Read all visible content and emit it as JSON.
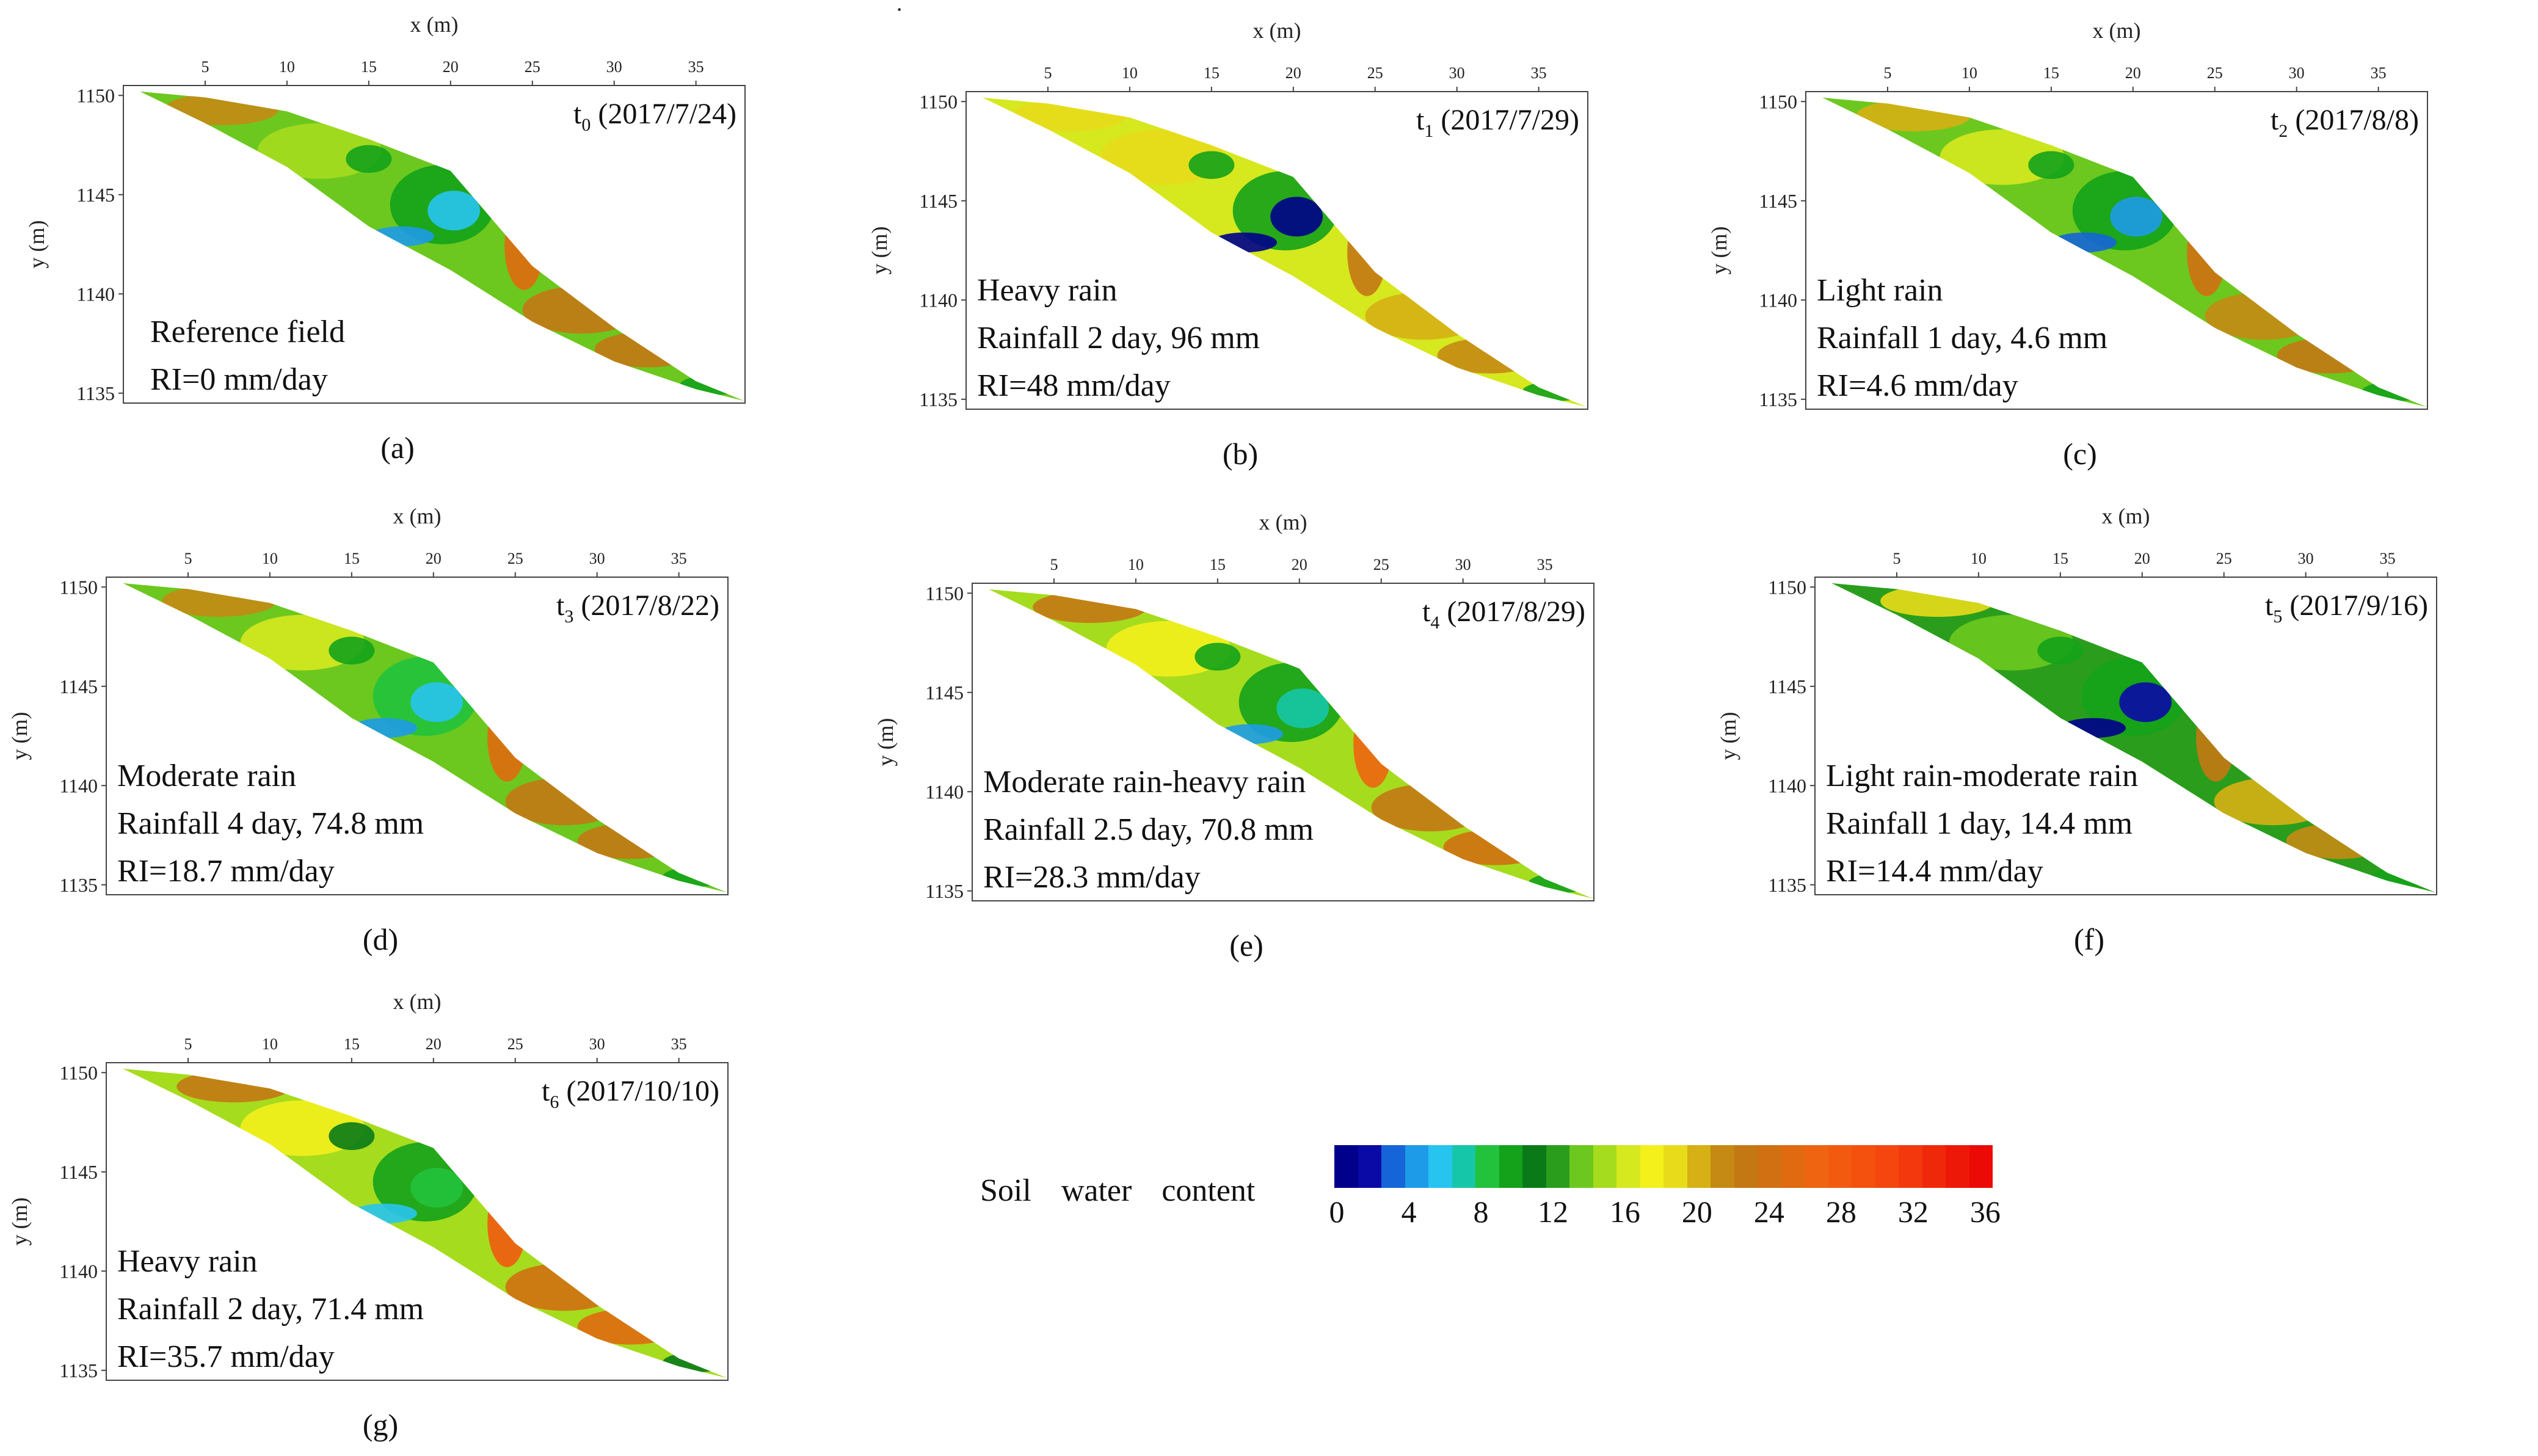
{
  "stray_mark": "·",
  "axes_common": {
    "xlabel": "x (m)",
    "ylabel": "y (m)",
    "xticks": [
      "5",
      "10",
      "15",
      "20",
      "25",
      "30",
      "35"
    ],
    "yticks": [
      "1150",
      "1145",
      "1140",
      "1135"
    ]
  },
  "panels": [
    {
      "id": "a",
      "caption": "(a)",
      "title_main": "t",
      "title_sub": "0",
      "title_date": " (2017/7/24)",
      "notes": [
        "Reference field",
        "RI=0 mm/day"
      ]
    },
    {
      "id": "b",
      "caption": "(b)",
      "title_main": "t",
      "title_sub": "1",
      "title_date": " (2017/7/29)",
      "notes": [
        "Heavy rain",
        "Rainfall 2 day, 96 mm",
        "RI=48 mm/day"
      ]
    },
    {
      "id": "c",
      "caption": "(c)",
      "title_main": "t",
      "title_sub": "2",
      "title_date": " (2017/8/8)",
      "notes": [
        "Light rain",
        "Rainfall 1 day, 4.6 mm",
        "RI=4.6 mm/day"
      ]
    },
    {
      "id": "d",
      "caption": "(d)",
      "title_main": "t",
      "title_sub": "3",
      "title_date": " (2017/8/22)",
      "notes": [
        "Moderate rain",
        "Rainfall 4 day, 74.8 mm",
        "RI=18.7 mm/day"
      ]
    },
    {
      "id": "e",
      "caption": "(e)",
      "title_main": "t",
      "title_sub": "4",
      "title_date": " (2017/8/29)",
      "notes": [
        "Moderate rain-heavy rain",
        "Rainfall 2.5 day, 70.8 mm",
        "RI=28.3 mm/day"
      ]
    },
    {
      "id": "f",
      "caption": "(f)",
      "title_main": "t",
      "title_sub": "5",
      "title_date": " (2017/9/16)",
      "notes": [
        "Light rain-moderate rain",
        "Rainfall 1 day, 14.4 mm",
        "RI=14.4 mm/day"
      ]
    },
    {
      "id": "g",
      "caption": "(g)",
      "title_main": "t",
      "title_sub": "6",
      "title_date": " (2017/10/10)",
      "notes": [
        "Heavy rain",
        "Rainfall 2 day, 71.4 mm",
        "RI=35.7 mm/day"
      ]
    }
  ],
  "legend": {
    "label": "Soil water content",
    "ticks": [
      "0",
      "4",
      "8",
      "12",
      "16",
      "20",
      "24",
      "28",
      "32",
      "36"
    ],
    "colors": [
      "#00008b",
      "#0a0aa6",
      "#1565d8",
      "#1e9be8",
      "#28c4f0",
      "#16c6a8",
      "#22c23c",
      "#14a21a",
      "#0a7a18",
      "#2a9e1c",
      "#6cc81e",
      "#a6dc1e",
      "#d6e81e",
      "#f4f01c",
      "#e8dc1a",
      "#d6b014",
      "#c48a14",
      "#c47814",
      "#d07012",
      "#e06a10",
      "#ee6410",
      "#f25a10",
      "#f4500e",
      "#f4460e",
      "#f2380c",
      "#f0280a",
      "#ee1808",
      "#ec0a06"
    ]
  },
  "chart_data": {
    "type": "heatmap",
    "title": "Soil water content",
    "xlabel": "x (m)",
    "ylabel": "y (m)",
    "xlim": [
      0,
      38
    ],
    "ylim": [
      1134.5,
      1150.5
    ],
    "colorbar_range": [
      0,
      36
    ],
    "profile_surface": {
      "x": [
        1,
        5,
        10,
        15,
        20,
        25,
        30,
        35,
        38
      ],
      "y": [
        1150.2,
        1149.9,
        1149.2,
        1147.8,
        1146.2,
        1141.4,
        1138.3,
        1135.6,
        1134.6
      ]
    },
    "profile_base": {
      "x": [
        1,
        5,
        10,
        15,
        20,
        25,
        30,
        35,
        38
      ],
      "y": [
        1150.2,
        1148.6,
        1146.4,
        1143.4,
        1141.2,
        1138.6,
        1136.6,
        1135.2,
        1134.6
      ]
    },
    "frames": [
      {
        "id": "t0",
        "date": "2017/7/24",
        "dominant": [
          13,
          9,
          22
        ],
        "wet_zone": 6
      },
      {
        "id": "t1",
        "date": "2017/7/29",
        "dominant": [
          16,
          9,
          20
        ],
        "wet_zone": 1
      },
      {
        "id": "t2",
        "date": "2017/8/8",
        "dominant": [
          14,
          9,
          21
        ],
        "wet_zone": 5
      },
      {
        "id": "t3",
        "date": "2017/8/22",
        "dominant": [
          14,
          8,
          22
        ],
        "wet_zone": 6
      },
      {
        "id": "t4",
        "date": "2017/8/29",
        "dominant": [
          15,
          9,
          23
        ],
        "wet_zone": 7
      },
      {
        "id": "t5",
        "date": "2017/9/16",
        "dominant": [
          12,
          9,
          20
        ],
        "wet_zone": 2
      },
      {
        "id": "t6",
        "date": "2017/10/10",
        "dominant": [
          15,
          10,
          24
        ],
        "wet_zone": 8
      }
    ]
  }
}
